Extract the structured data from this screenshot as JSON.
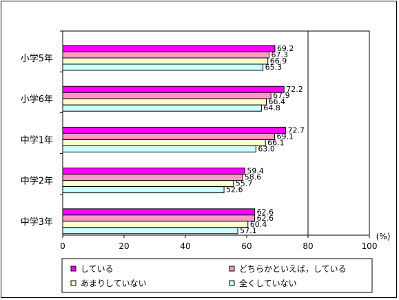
{
  "chart_data": {
    "type": "bar",
    "orientation": "horizontal",
    "categories": [
      "小学5年",
      "小学6年",
      "中学1年",
      "中学2年",
      "中学3年"
    ],
    "series": [
      {
        "name": "している",
        "color": "#ff00ff",
        "values": [
          69.2,
          72.2,
          72.7,
          59.4,
          62.6
        ]
      },
      {
        "name": "どちらかといえば，している",
        "color": "#ff99cc",
        "values": [
          67.3,
          67.9,
          69.1,
          58.6,
          62.6
        ]
      },
      {
        "name": "あまりしていない",
        "color": "#ffffcc",
        "values": [
          66.9,
          66.4,
          66.1,
          55.7,
          60.4
        ]
      },
      {
        "name": "全くしていない",
        "color": "#ccffff",
        "values": [
          65.3,
          64.8,
          63.0,
          52.6,
          57.1
        ]
      }
    ],
    "value_labels": [
      [
        "69.2",
        "67.3",
        "66.9",
        "65.3"
      ],
      [
        "72.2",
        "67.9",
        "66.4",
        "64.8"
      ],
      [
        "72.7",
        "69.1",
        "66.1",
        "63.0"
      ],
      [
        "59.4",
        "58.6",
        "55.7",
        "52.6"
      ],
      [
        "62.6",
        "62.6",
        "60.4",
        "57.1"
      ]
    ],
    "xticks": [
      0,
      20,
      40,
      60,
      80,
      100
    ],
    "xlim": [
      0,
      100
    ],
    "unit_label": "(%)",
    "grid": "vertical at 80 and 100",
    "legend_position": "bottom"
  }
}
